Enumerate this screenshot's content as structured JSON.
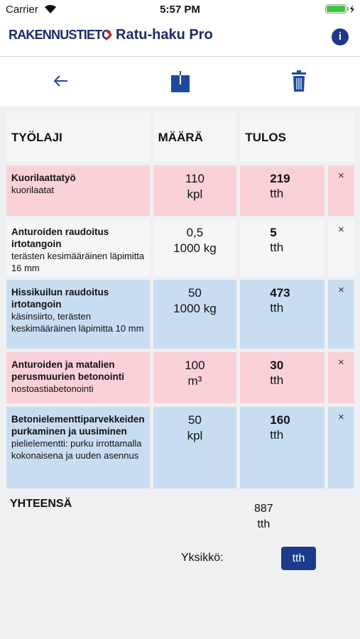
{
  "status_bar": {
    "carrier": "Carrier",
    "time": "5:57 PM"
  },
  "header": {
    "brand": "RAKENNUSTIETO",
    "title": "Ratu-haku Pro",
    "info": "i"
  },
  "table": {
    "headers": [
      "TYÖLAJI",
      "MÄÄRÄ",
      "TULOS"
    ],
    "delete_label": "×",
    "rows": [
      {
        "title": "Kuorilaattatyö",
        "description": "kuorilaatat",
        "quantity": "110",
        "unit": "kpl",
        "result": "219",
        "result_unit": "tth"
      },
      {
        "title": "Anturoiden raudoitus irtotangoin",
        "description": "terästen kesimääräinen läpimitta 16 mm",
        "quantity": "0,5",
        "unit": "1000 kg",
        "result": "5",
        "result_unit": "tth"
      },
      {
        "title": "Hissikuilun raudoitus irtotangoin",
        "description": "käsinsiirto, terästen keskimääräinen läpimitta 10 mm",
        "quantity": "50",
        "unit": "1000 kg",
        "result": "473",
        "result_unit": "tth"
      },
      {
        "title": "Anturoiden ja matalien perusmuurien betonointi",
        "description": "nostoastiabetonointi",
        "quantity": "100",
        "unit": "m³",
        "result": "30",
        "result_unit": "tth"
      },
      {
        "title": "Betonielementtiparvekkeiden purkaminen ja uusiminen",
        "description": "pielielementti: purku irrottamalla kokonaisena ja uuden asennus",
        "quantity": "50",
        "unit": "kpl",
        "result": "160",
        "result_unit": "tth"
      }
    ]
  },
  "total": {
    "label": "YHTEENSÄ",
    "value": "887",
    "unit": "tth"
  },
  "unit_selector": {
    "label": "Yksikkö:",
    "button": "tth"
  }
}
